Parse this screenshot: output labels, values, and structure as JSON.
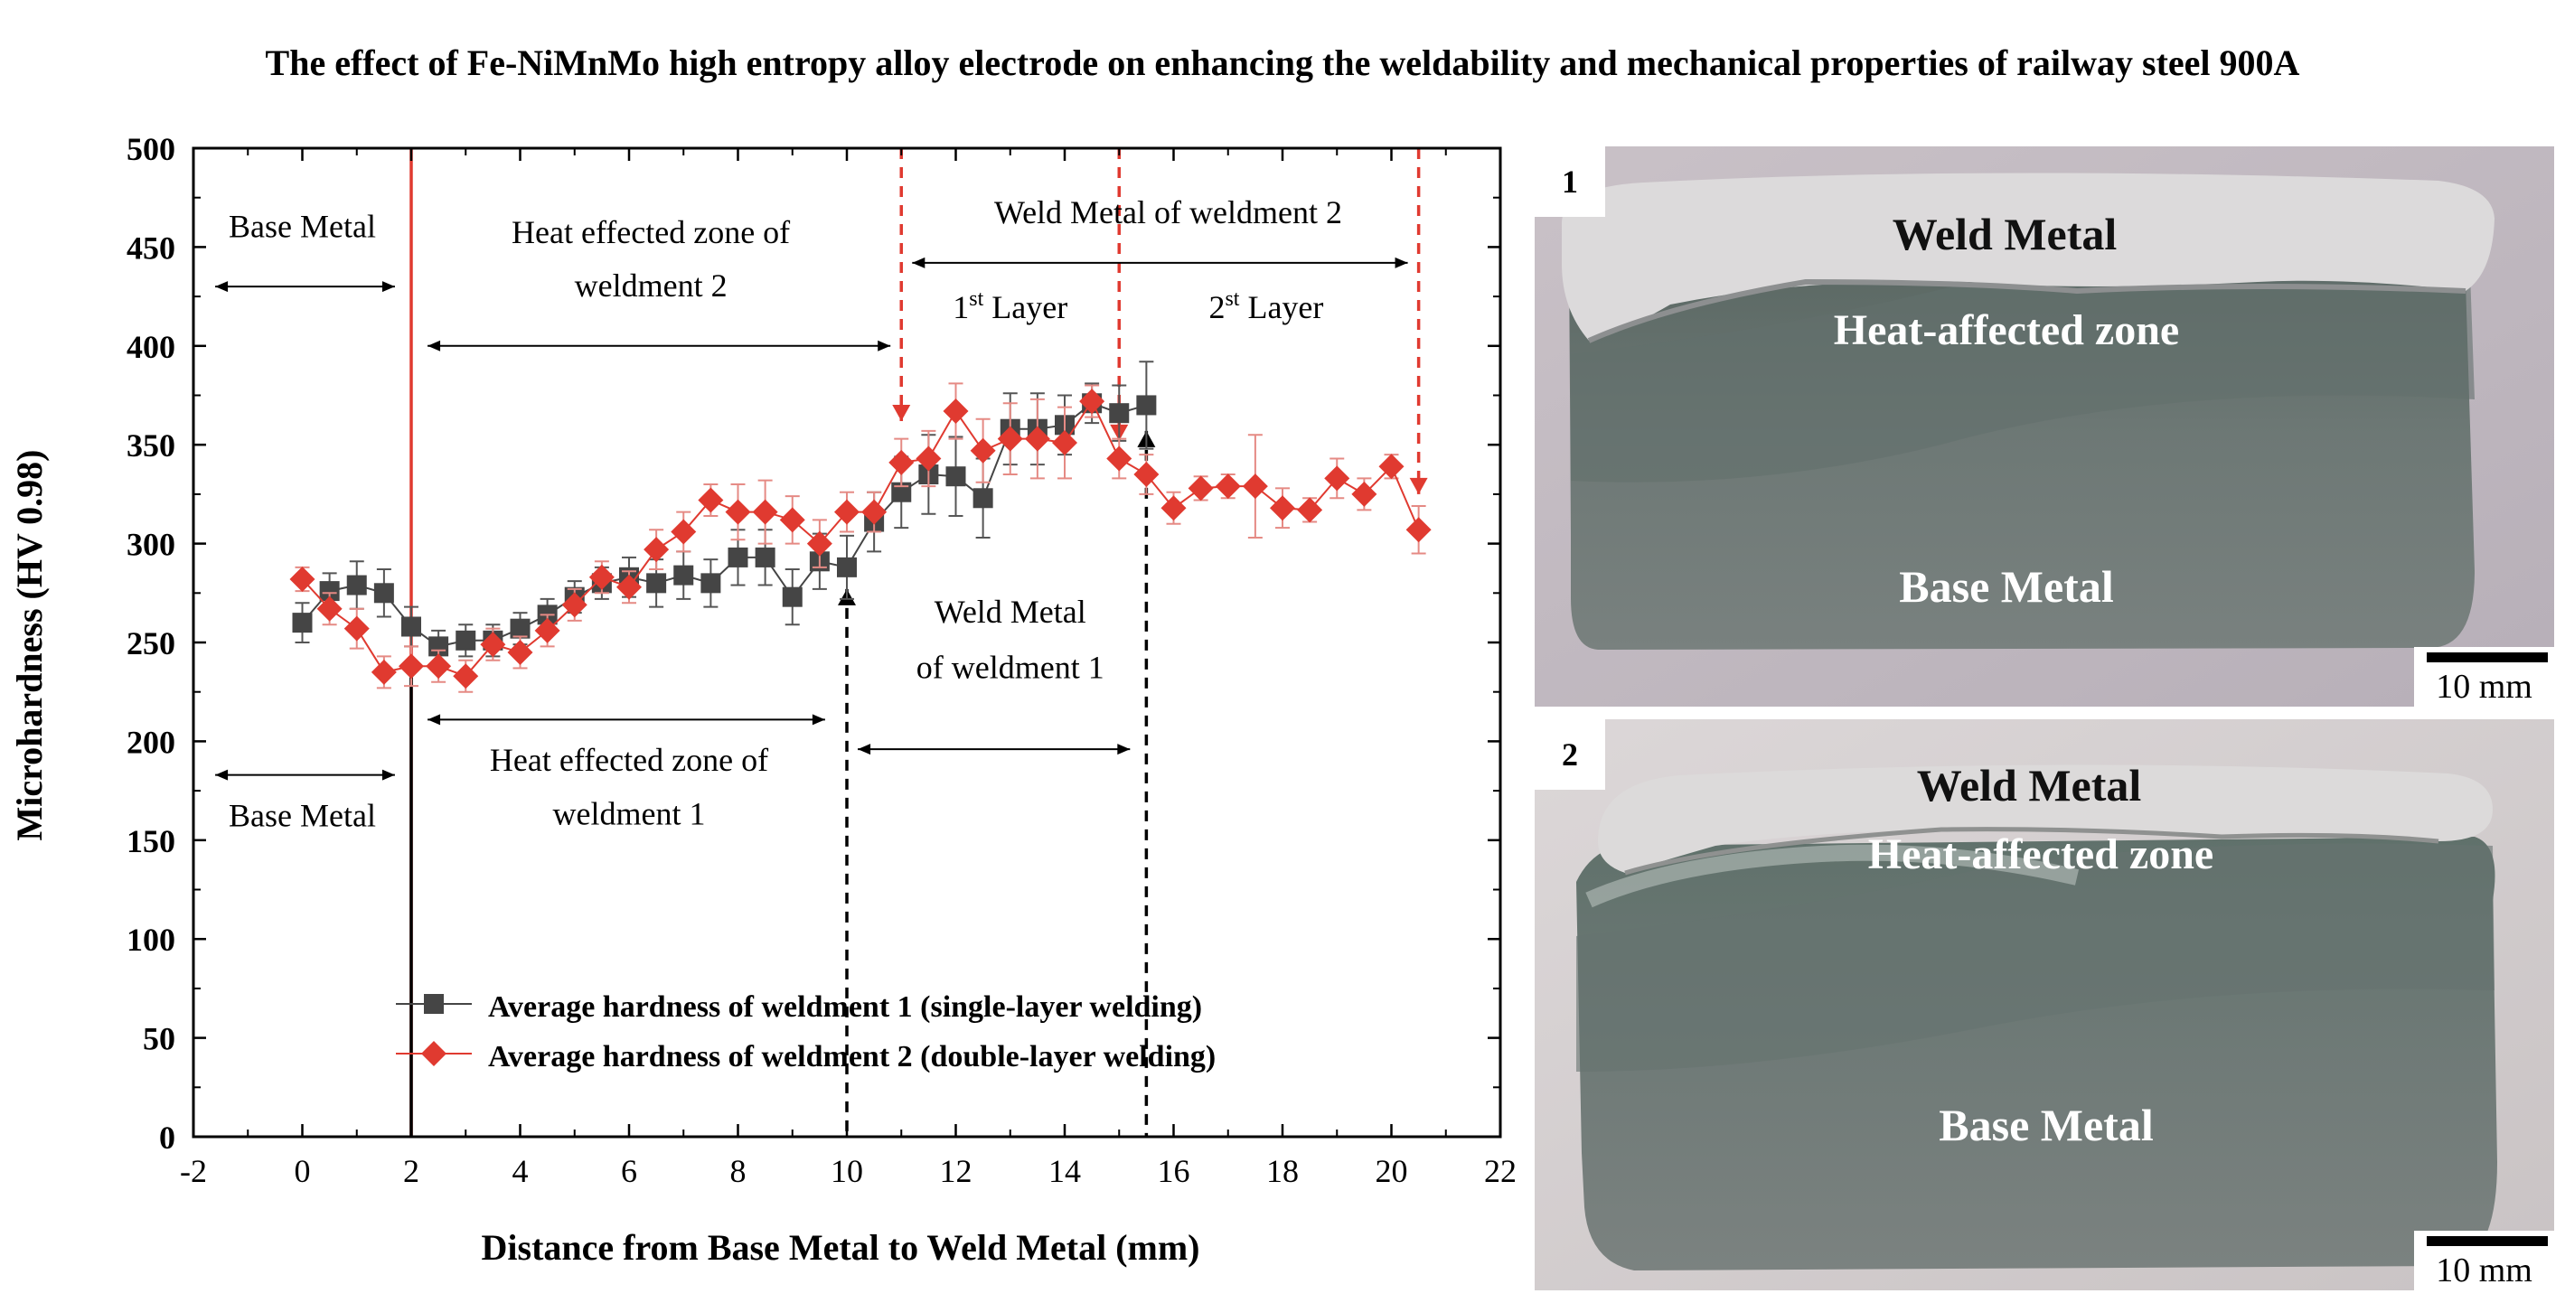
{
  "title": "The effect of Fe-NiMnMo high entropy alloy electrode on enhancing the weldability and mechanical properties of railway steel 900A",
  "chart_data": {
    "type": "line",
    "xlabel": "Distance from Base Metal to Weld Metal (mm)",
    "ylabel": "Microhardness (HV 0.98)",
    "xlim": [
      -2,
      22
    ],
    "ylim": [
      0,
      500
    ],
    "xticks": [
      -2,
      0,
      2,
      4,
      6,
      8,
      10,
      12,
      14,
      16,
      18,
      20,
      22
    ],
    "yticks": [
      0,
      50,
      100,
      150,
      200,
      250,
      300,
      350,
      400,
      450,
      500
    ],
    "legend_position": "bottom-center",
    "series": [
      {
        "name": "Average hardness of weldment 1 (single-layer welding)",
        "color": "#454545",
        "marker": "square",
        "x": [
          0,
          0.5,
          1,
          1.5,
          2,
          2.5,
          3,
          3.5,
          4,
          4.5,
          5,
          5.5,
          6,
          6.5,
          7,
          7.5,
          8,
          8.5,
          9,
          9.5,
          10,
          10.5,
          11,
          11.5,
          12,
          12.5,
          13,
          13.5,
          14,
          14.5,
          15,
          15.5
        ],
        "y": [
          260,
          276,
          279,
          275,
          258,
          248,
          251,
          251,
          257,
          264,
          273,
          280,
          283,
          280,
          284,
          280,
          293,
          293,
          273,
          291,
          288,
          311,
          326,
          335,
          334,
          323,
          358,
          358,
          360,
          371,
          366,
          370
        ],
        "err": [
          10,
          9,
          12,
          12,
          10,
          8,
          8,
          8,
          8,
          8,
          8,
          8,
          10,
          12,
          12,
          12,
          14,
          14,
          14,
          14,
          16,
          15,
          18,
          20,
          20,
          20,
          18,
          18,
          15,
          10,
          14,
          22
        ]
      },
      {
        "name": "Average hardness of weldment 2 (double-layer welding)",
        "color": "#e03a30",
        "marker": "diamond",
        "x": [
          0,
          0.5,
          1,
          1.5,
          2,
          2.5,
          3,
          3.5,
          4,
          4.5,
          5,
          5.5,
          6,
          6.5,
          7,
          7.5,
          8,
          8.5,
          9,
          9.5,
          10,
          10.5,
          11,
          11.5,
          12,
          12.5,
          13,
          13.5,
          14,
          14.5,
          15,
          15.5,
          16,
          16.5,
          17,
          17.5,
          18,
          18.5,
          19,
          19.5,
          20,
          20.5
        ],
        "y": [
          282,
          267,
          257,
          235,
          238,
          238,
          233,
          249,
          245,
          256,
          269,
          283,
          278,
          297,
          306,
          322,
          316,
          316,
          312,
          300,
          316,
          316,
          341,
          343,
          367,
          347,
          353,
          353,
          351,
          372,
          343,
          335,
          318,
          328,
          329,
          329,
          318,
          317,
          333,
          325,
          339,
          307
        ],
        "err": [
          6,
          8,
          10,
          8,
          10,
          8,
          8,
          8,
          8,
          8,
          8,
          8,
          8,
          10,
          10,
          8,
          14,
          16,
          12,
          12,
          10,
          10,
          12,
          14,
          14,
          16,
          18,
          20,
          18,
          8,
          10,
          10,
          8,
          6,
          6,
          26,
          10,
          6,
          10,
          8,
          6,
          12
        ]
      }
    ],
    "boundaries": [
      {
        "x": 2,
        "color": "#e03a30",
        "style": "solid",
        "ymax": 500
      },
      {
        "x": 2,
        "color": "#000000",
        "style": "solid",
        "ymax": 238
      },
      {
        "x": 11,
        "color": "#e03a30",
        "style": "dashed",
        "ymax": 500,
        "ymin": 362,
        "arrow": "down"
      },
      {
        "x": 15,
        "color": "#e03a30",
        "style": "dashed",
        "ymax": 500,
        "ymin": 352,
        "arrow": "down"
      },
      {
        "x": 20.5,
        "color": "#e03a30",
        "style": "dashed",
        "ymax": 500,
        "ymin": 325,
        "arrow": "down"
      },
      {
        "x": 10,
        "color": "#000000",
        "style": "dashed",
        "ymin": 0,
        "ymax": 277,
        "arrow": "up"
      },
      {
        "x": 15.5,
        "color": "#000000",
        "style": "dashed",
        "ymin": 0,
        "ymax": 357,
        "arrow": "up"
      }
    ],
    "spans": [
      {
        "x1": -1.6,
        "x2": 1.7,
        "y": 430
      },
      {
        "x1": 2.3,
        "x2": 10.8,
        "y": 400
      },
      {
        "x1": 11.2,
        "x2": 20.3,
        "y": 442
      },
      {
        "x1": 2.3,
        "x2": 9.6,
        "y": 211
      },
      {
        "x1": -1.6,
        "x2": 1.7,
        "y": 183
      },
      {
        "x1": 10.2,
        "x2": 15.2,
        "y": 196
      }
    ],
    "annotations": [
      {
        "text": "Base Metal",
        "x": 0,
        "y": 455
      },
      {
        "text": "Heat effected zone of",
        "x": 6.4,
        "y": 452
      },
      {
        "text": "weldment 2",
        "x": 6.4,
        "y": 425
      },
      {
        "text": "Weld Metal of weldment 2",
        "x": 15.9,
        "y": 462
      },
      {
        "text": "1st Layer",
        "x": 13,
        "y": 414
      },
      {
        "text": "2st Layer",
        "x": 17.7,
        "y": 414
      },
      {
        "text": "Weld Metal",
        "x": 13,
        "y": 260
      },
      {
        "text": "of weldment 1",
        "x": 13,
        "y": 232
      },
      {
        "text": "Heat effected zone of",
        "x": 6,
        "y": 185
      },
      {
        "text": "weldment 1",
        "x": 6,
        "y": 158
      },
      {
        "text": "Base Metal",
        "x": 0,
        "y": 157
      }
    ]
  },
  "photos": [
    {
      "number": "1",
      "labels": [
        "Weld Metal",
        "Heat-affected zone",
        "Base Metal"
      ],
      "scale_text": "10 mm"
    },
    {
      "number": "2",
      "labels": [
        "Weld Metal",
        "Heat-affected zone",
        "Base Metal"
      ],
      "scale_text": "10 mm"
    }
  ]
}
